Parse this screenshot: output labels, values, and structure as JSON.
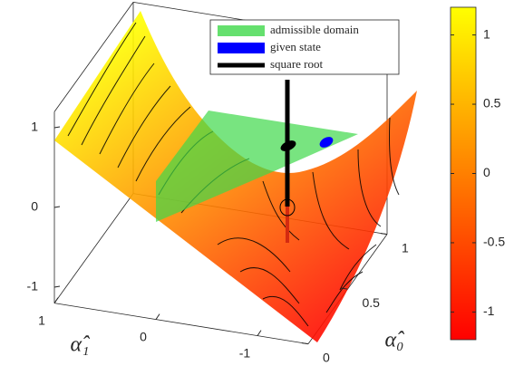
{
  "chart_data": {
    "type": "surface",
    "x_label": "α̂₁",
    "y_label": "α̂₀",
    "xlim": [
      -1.5,
      1
    ],
    "ylim": [
      0,
      1
    ],
    "zlim": [
      -1.2,
      1.2
    ],
    "xticks": [
      -1,
      0,
      1
    ],
    "yticks": [
      0,
      0.5,
      1
    ],
    "zticks": [
      -1,
      0,
      1
    ],
    "colormap": [
      "#ff0000",
      "#ffff00"
    ],
    "clim": [
      -1.2,
      1.2
    ],
    "cticks": [
      -1,
      -0.5,
      0,
      0.5,
      1
    ],
    "legend": [
      {
        "name": "admissible domain",
        "color": "#3fd84a",
        "style": "patch"
      },
      {
        "name": "given state",
        "color": "#0000ff",
        "style": "patch"
      },
      {
        "name": "square root",
        "color": "#000000",
        "style": "line"
      }
    ]
  }
}
